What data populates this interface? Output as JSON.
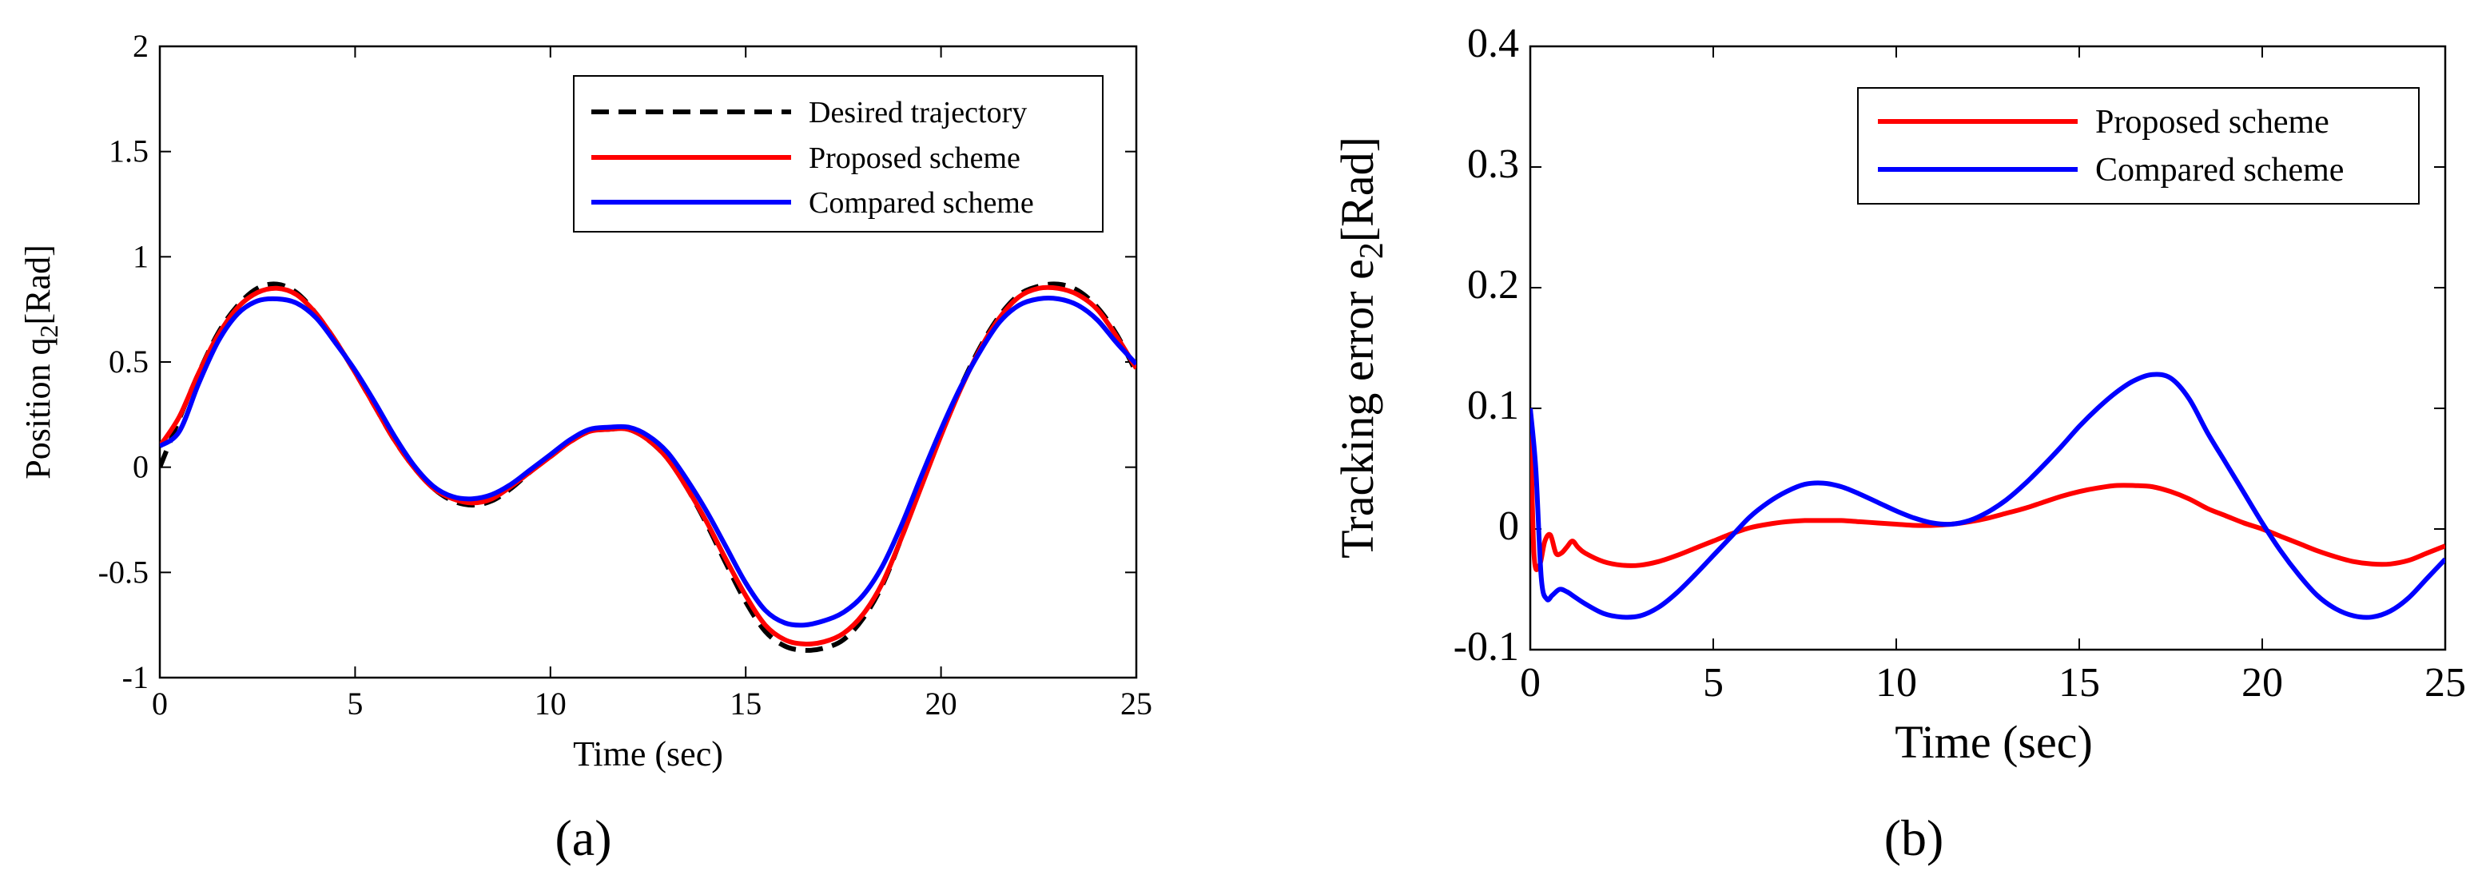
{
  "chart_data": [
    {
      "type": "line",
      "panel": "(a)",
      "xlabel": "Time (sec)",
      "ylabel_main": "Position q",
      "ylabel_sub": "2",
      "ylabel_unit": "[Rad]",
      "xlim": [
        0,
        25
      ],
      "ylim": [
        -1,
        2
      ],
      "xticks": [
        0,
        5,
        10,
        15,
        20,
        25
      ],
      "yticks": [
        -1,
        -0.5,
        0,
        0.5,
        1,
        1.5,
        2
      ],
      "xtick_labels": [
        "0",
        "5",
        "10",
        "15",
        "20",
        "25"
      ],
      "ytick_labels": [
        "-1",
        "-0.5",
        "0",
        "0.5",
        "1",
        "1.5",
        "2"
      ],
      "legend_position": "top-right",
      "legend": [
        "Desired trajectory",
        "Proposed scheme",
        "Compared scheme"
      ],
      "x": [
        0,
        0.5,
        1,
        1.5,
        2,
        2.5,
        3,
        3.5,
        4,
        4.5,
        5,
        5.5,
        6,
        6.5,
        7,
        7.5,
        8,
        8.5,
        9,
        9.5,
        10,
        10.5,
        11,
        11.5,
        12,
        12.5,
        13,
        13.5,
        14,
        14.5,
        15,
        15.5,
        16,
        16.5,
        17,
        17.5,
        18,
        18.5,
        19,
        19.5,
        20,
        20.5,
        21,
        21.5,
        22,
        22.5,
        23,
        23.5,
        24,
        24.5,
        25
      ],
      "series": [
        {
          "name": "Desired trajectory",
          "color": "#000000",
          "dash": "dashed",
          "values": [
            0.0,
            0.23,
            0.45,
            0.64,
            0.77,
            0.85,
            0.87,
            0.83,
            0.73,
            0.6,
            0.45,
            0.29,
            0.13,
            0.0,
            -0.1,
            -0.16,
            -0.18,
            -0.16,
            -0.1,
            -0.02,
            0.05,
            0.12,
            0.17,
            0.18,
            0.18,
            0.13,
            0.04,
            -0.1,
            -0.27,
            -0.46,
            -0.64,
            -0.78,
            -0.85,
            -0.87,
            -0.86,
            -0.82,
            -0.72,
            -0.56,
            -0.33,
            -0.08,
            0.16,
            0.38,
            0.57,
            0.72,
            0.82,
            0.86,
            0.87,
            0.84,
            0.76,
            0.63,
            0.45
          ]
        },
        {
          "name": "Proposed scheme",
          "color": "#ff0000",
          "dash": "solid",
          "values": [
            0.1,
            0.24,
            0.45,
            0.63,
            0.76,
            0.83,
            0.85,
            0.82,
            0.73,
            0.6,
            0.45,
            0.29,
            0.13,
            0.0,
            -0.1,
            -0.15,
            -0.17,
            -0.15,
            -0.09,
            -0.02,
            0.05,
            0.12,
            0.17,
            0.18,
            0.18,
            0.13,
            0.04,
            -0.1,
            -0.26,
            -0.44,
            -0.61,
            -0.75,
            -0.82,
            -0.84,
            -0.83,
            -0.79,
            -0.7,
            -0.55,
            -0.33,
            -0.09,
            0.15,
            0.37,
            0.56,
            0.71,
            0.81,
            0.85,
            0.85,
            0.82,
            0.75,
            0.62,
            0.47
          ]
        },
        {
          "name": "Compared scheme",
          "color": "#0000ff",
          "dash": "solid",
          "values": [
            0.1,
            0.17,
            0.4,
            0.6,
            0.73,
            0.79,
            0.8,
            0.78,
            0.71,
            0.59,
            0.46,
            0.31,
            0.15,
            0.01,
            -0.09,
            -0.14,
            -0.15,
            -0.13,
            -0.08,
            -0.01,
            0.06,
            0.13,
            0.18,
            0.19,
            0.19,
            0.15,
            0.07,
            -0.06,
            -0.21,
            -0.38,
            -0.55,
            -0.68,
            -0.74,
            -0.75,
            -0.73,
            -0.69,
            -0.61,
            -0.47,
            -0.27,
            -0.04,
            0.18,
            0.38,
            0.55,
            0.69,
            0.77,
            0.8,
            0.8,
            0.77,
            0.7,
            0.59,
            0.49
          ]
        }
      ]
    },
    {
      "type": "line",
      "panel": "(b)",
      "xlabel": "Time (sec)",
      "ylabel_main": "Tracking error e",
      "ylabel_sub": "2",
      "ylabel_unit": "[Rad]",
      "xlim": [
        0,
        25
      ],
      "ylim": [
        -0.1,
        0.4
      ],
      "xticks": [
        0,
        5,
        10,
        15,
        20,
        25
      ],
      "yticks": [
        -0.1,
        0,
        0.1,
        0.2,
        0.3,
        0.4
      ],
      "xtick_labels": [
        "0",
        "5",
        "10",
        "15",
        "20",
        "25"
      ],
      "ytick_labels": [
        "-0.1",
        "0",
        "0.1",
        "0.2",
        "0.3",
        "0.4"
      ],
      "legend_position": "top-right",
      "legend": [
        "Proposed scheme",
        "Compared scheme"
      ],
      "series": [
        {
          "name": "Proposed scheme",
          "color": "#ff0000",
          "dash": "solid",
          "x": [
            0,
            0.1,
            0.25,
            0.4,
            0.55,
            0.7,
            0.85,
            1.0,
            1.15,
            1.3,
            1.5,
            2,
            2.5,
            3,
            3.5,
            4,
            4.5,
            5,
            5.5,
            6,
            6.5,
            7,
            7.5,
            8,
            8.5,
            9,
            9.5,
            10,
            10.5,
            11,
            11.5,
            12,
            12.5,
            13,
            13.5,
            14,
            14.5,
            15,
            15.5,
            16,
            16.5,
            17,
            17.5,
            18,
            18.5,
            19,
            19.5,
            20,
            20.5,
            21,
            21.5,
            22,
            22.5,
            23,
            23.5,
            24,
            24.5,
            25
          ],
          "values": [
            0.1,
            -0.02,
            -0.03,
            -0.01,
            -0.005,
            -0.02,
            -0.02,
            -0.015,
            -0.01,
            -0.015,
            -0.02,
            -0.027,
            -0.03,
            -0.03,
            -0.027,
            -0.022,
            -0.016,
            -0.01,
            -0.004,
            0.001,
            0.004,
            0.006,
            0.007,
            0.007,
            0.007,
            0.006,
            0.005,
            0.004,
            0.003,
            0.003,
            0.004,
            0.006,
            0.009,
            0.013,
            0.017,
            0.022,
            0.027,
            0.031,
            0.034,
            0.036,
            0.036,
            0.035,
            0.031,
            0.025,
            0.017,
            0.011,
            0.005,
            0.0,
            -0.006,
            -0.012,
            -0.018,
            -0.023,
            -0.027,
            -0.029,
            -0.029,
            -0.026,
            -0.02,
            -0.014
          ]
        },
        {
          "name": "Compared scheme",
          "color": "#0000ff",
          "dash": "solid",
          "x": [
            0,
            0.15,
            0.3,
            0.45,
            0.6,
            0.8,
            1.0,
            1.2,
            1.5,
            2,
            2.5,
            3,
            3.5,
            4,
            4.5,
            5,
            5.5,
            6,
            6.5,
            7,
            7.5,
            8,
            8.5,
            9,
            9.5,
            10,
            10.5,
            11,
            11.5,
            12,
            12.5,
            13,
            13.5,
            14,
            14.5,
            15,
            15.5,
            16,
            16.5,
            17,
            17.5,
            18,
            18.5,
            19,
            19.5,
            20,
            20.5,
            21,
            21.5,
            22,
            22.5,
            23,
            23.5,
            24,
            24.5,
            25
          ],
          "values": [
            0.1,
            0.05,
            -0.04,
            -0.058,
            -0.055,
            -0.05,
            -0.052,
            -0.056,
            -0.062,
            -0.07,
            -0.073,
            -0.072,
            -0.065,
            -0.053,
            -0.038,
            -0.022,
            -0.006,
            0.01,
            0.022,
            0.031,
            0.037,
            0.038,
            0.035,
            0.029,
            0.022,
            0.015,
            0.009,
            0.005,
            0.004,
            0.007,
            0.014,
            0.024,
            0.037,
            0.052,
            0.068,
            0.085,
            0.1,
            0.113,
            0.123,
            0.128,
            0.125,
            0.108,
            0.08,
            0.055,
            0.03,
            0.005,
            -0.018,
            -0.038,
            -0.055,
            -0.066,
            -0.072,
            -0.073,
            -0.068,
            -0.057,
            -0.041,
            -0.025
          ]
        }
      ]
    }
  ]
}
